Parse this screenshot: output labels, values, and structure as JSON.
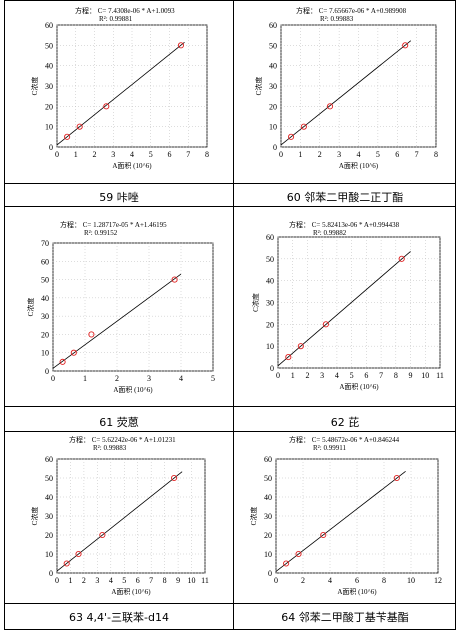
{
  "captions": [
    "59 咔唑",
    "60 邻苯二甲酸二正丁酯",
    "61 荧蒽",
    "62 芘",
    "63 4,4'-三联苯-d14",
    "64 邻苯二甲酸丁基苄基酯"
  ],
  "chart_data": [
    {
      "type": "scatter",
      "equation": "方程： C= 7.4308e-06 * A+1.0093",
      "r2": "R²: 0.99881",
      "xlabel": "A面积 (10^6)",
      "ylabel": "C浓度",
      "xlim": [
        0,
        8
      ],
      "ylim": [
        0,
        60
      ],
      "xticks": [
        "0",
        "1",
        "2",
        "3",
        "4",
        "5",
        "6",
        "7",
        "8"
      ],
      "yticks": [
        "0",
        "10",
        "20",
        "30",
        "40",
        "50",
        "60"
      ],
      "x": [
        0.54,
        1.21,
        2.63,
        6.61
      ],
      "y": [
        5,
        10,
        20,
        50
      ],
      "fit": {
        "x": [
          0,
          6.8
        ],
        "y": [
          1.0093,
          51.5
        ]
      }
    },
    {
      "type": "scatter",
      "equation": "方程： C= 7.65667e-06 * A+0.989908",
      "r2": "R²: 0.99883",
      "xlabel": "A面积 (10^6)",
      "ylabel": "C浓度",
      "xlim": [
        0,
        8
      ],
      "ylim": [
        0,
        60
      ],
      "xticks": [
        "0",
        "1",
        "2",
        "3",
        "4",
        "5",
        "6",
        "7",
        "8"
      ],
      "yticks": [
        "0",
        "10",
        "20",
        "30",
        "40",
        "50",
        "60"
      ],
      "x": [
        0.52,
        1.18,
        2.53,
        6.41
      ],
      "y": [
        5,
        10,
        20,
        50
      ],
      "fit": {
        "x": [
          0,
          6.7
        ],
        "y": [
          0.99,
          52.3
        ]
      }
    },
    {
      "type": "scatter",
      "equation": "方程： C= 1.28717e-05 * A+1.46195",
      "r2": "R²: 0.99152",
      "xlabel": "A面积 (10^6)",
      "ylabel": "C浓度",
      "xlim": [
        0,
        5
      ],
      "ylim": [
        0,
        70
      ],
      "xticks": [
        "0",
        "1",
        "2",
        "3",
        "4",
        "5"
      ],
      "yticks": [
        "0",
        "10",
        "20",
        "30",
        "40",
        "50",
        "60",
        "70"
      ],
      "x": [
        0.3,
        0.65,
        1.2,
        3.8
      ],
      "y": [
        5,
        10,
        20,
        50
      ],
      "fit": {
        "x": [
          0,
          4.0
        ],
        "y": [
          1.46,
          53
        ]
      }
    },
    {
      "type": "scatter",
      "equation": "方程： C= 5.82413e-06 * A+0.994438",
      "r2": "R²: 0.99882",
      "xlabel": "A面积 (10^6)",
      "ylabel": "C浓度",
      "xlim": [
        0,
        11
      ],
      "ylim": [
        0,
        60
      ],
      "xticks": [
        "0",
        "1",
        "2",
        "3",
        "4",
        "5",
        "6",
        "7",
        "8",
        "9",
        "10",
        "11"
      ],
      "yticks": [
        "0",
        "10",
        "20",
        "30",
        "40",
        "50",
        "60"
      ],
      "x": [
        0.7,
        1.55,
        3.25,
        8.4
      ],
      "y": [
        5,
        10,
        20,
        50
      ],
      "fit": {
        "x": [
          0,
          9.0
        ],
        "y": [
          0.99,
          53.4
        ]
      }
    },
    {
      "type": "scatter",
      "equation": "方程： C= 5.62242e-06 * A+1.01231",
      "r2": "R²: 0.99883",
      "xlabel": "A面积 (10^6)",
      "ylabel": "C浓度",
      "xlim": [
        0,
        11
      ],
      "ylim": [
        0,
        60
      ],
      "xticks": [
        "0",
        "1",
        "2",
        "3",
        "4",
        "5",
        "6",
        "7",
        "8",
        "9",
        "10",
        "11"
      ],
      "yticks": [
        "0",
        "10",
        "20",
        "30",
        "40",
        "50",
        "60"
      ],
      "x": [
        0.72,
        1.6,
        3.37,
        8.7
      ],
      "y": [
        5,
        10,
        20,
        50
      ],
      "fit": {
        "x": [
          0,
          9.3
        ],
        "y": [
          1.01,
          53.3
        ]
      }
    },
    {
      "type": "scatter",
      "equation": "方程： C= 5.48672e-06 * A+0.846244",
      "r2": "R²: 0.99911",
      "xlabel": "A面积 (10^6)",
      "ylabel": "C浓度",
      "xlim": [
        0,
        12
      ],
      "ylim": [
        0,
        60
      ],
      "xticks": [
        "0",
        "2",
        "4",
        "6",
        "8",
        "10",
        "12"
      ],
      "yticks": [
        "0",
        "10",
        "20",
        "30",
        "40",
        "50",
        "60"
      ],
      "x": [
        0.75,
        1.67,
        3.5,
        8.95
      ],
      "y": [
        5,
        10,
        20,
        50
      ],
      "fit": {
        "x": [
          0,
          9.6
        ],
        "y": [
          0.85,
          53.5
        ]
      }
    }
  ]
}
